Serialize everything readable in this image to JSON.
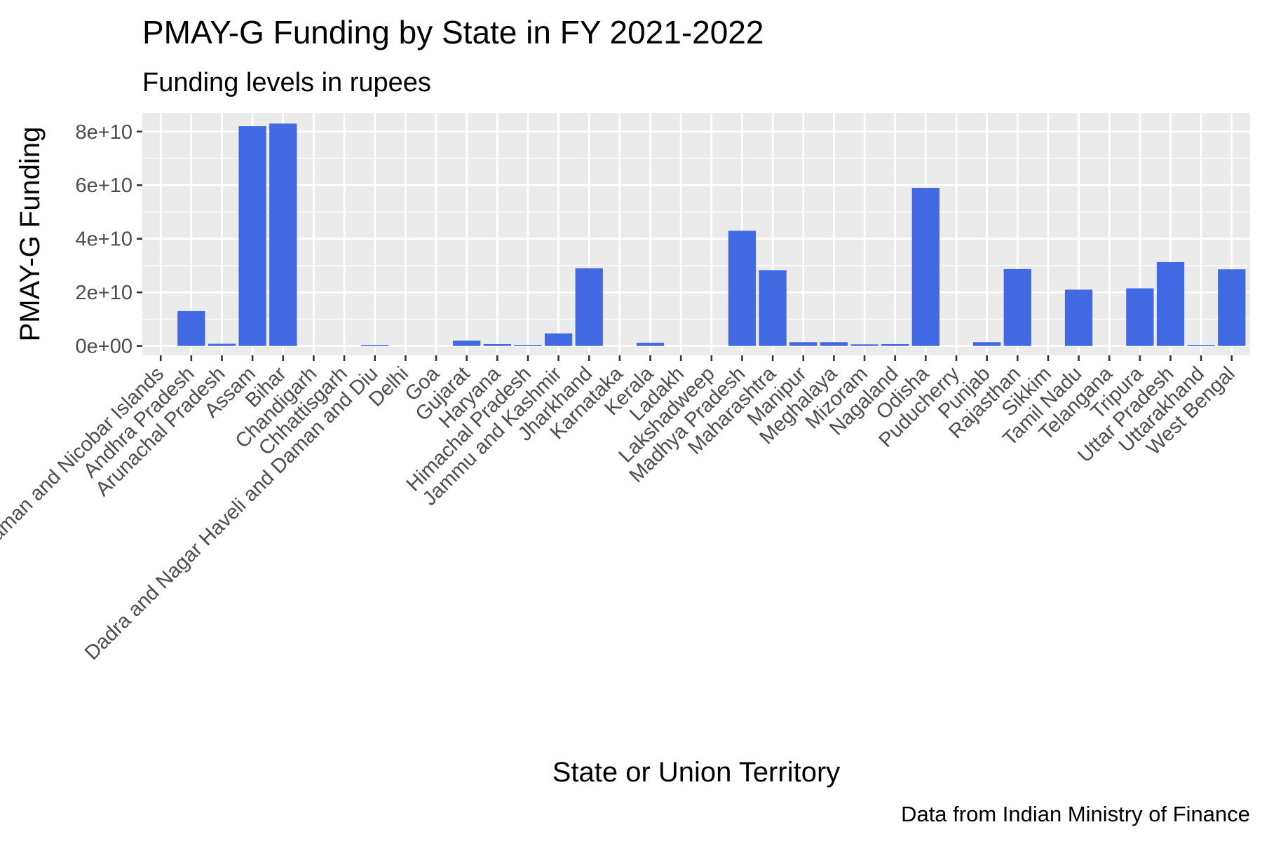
{
  "chart_data": {
    "type": "bar",
    "title": "PMAY-G Funding by State in FY 2021-2022",
    "subtitle": "Funding levels in rupees",
    "xlabel": "State or Union Territory",
    "ylabel": "PMAY-G Funding",
    "caption": "Data from Indian Ministry of Finance",
    "ylim": [
      -3500000000,
      87000000000
    ],
    "yticks": [
      0,
      20000000000,
      40000000000,
      60000000000,
      80000000000
    ],
    "ytick_labels": [
      "0e+00",
      "2e+10",
      "4e+10",
      "6e+10",
      "8e+10"
    ],
    "grid": true,
    "bar_color": "#4169e1",
    "panel_color": "#ebebeb",
    "categories": [
      "Andaman and Nicobar Islands",
      "Andhra Pradesh",
      "Arunachal Pradesh",
      "Assam",
      "Bihar",
      "Chandigarh",
      "Chhattisgarh",
      "Dadra and Nagar Haveli and Daman and Diu",
      "Delhi",
      "Goa",
      "Gujarat",
      "Haryana",
      "Himachal Pradesh",
      "Jammu and Kashmir",
      "Jharkhand",
      "Karnataka",
      "Kerala",
      "Ladakh",
      "Lakshadweep",
      "Madhya Pradesh",
      "Maharashtra",
      "Manipur",
      "Meghalaya",
      "Mizoram",
      "Nagaland",
      "Odisha",
      "Puducherry",
      "Punjab",
      "Rajasthan",
      "Sikkim",
      "Tamil Nadu",
      "Telangana",
      "Tripura",
      "Uttar Pradesh",
      "Uttarakhand",
      "West Bengal"
    ],
    "values": [
      0,
      13000000000,
      800000000,
      82000000000,
      83000000000,
      0,
      0,
      300000000,
      0,
      0,
      2000000000,
      700000000,
      400000000,
      4700000000,
      29000000000,
      0,
      1200000000,
      0,
      0,
      43000000000,
      28300000000,
      1400000000,
      1400000000,
      600000000,
      700000000,
      59000000000,
      0,
      1400000000,
      28700000000,
      0,
      21000000000,
      0,
      21500000000,
      31300000000,
      300000000,
      28600000000
    ]
  }
}
